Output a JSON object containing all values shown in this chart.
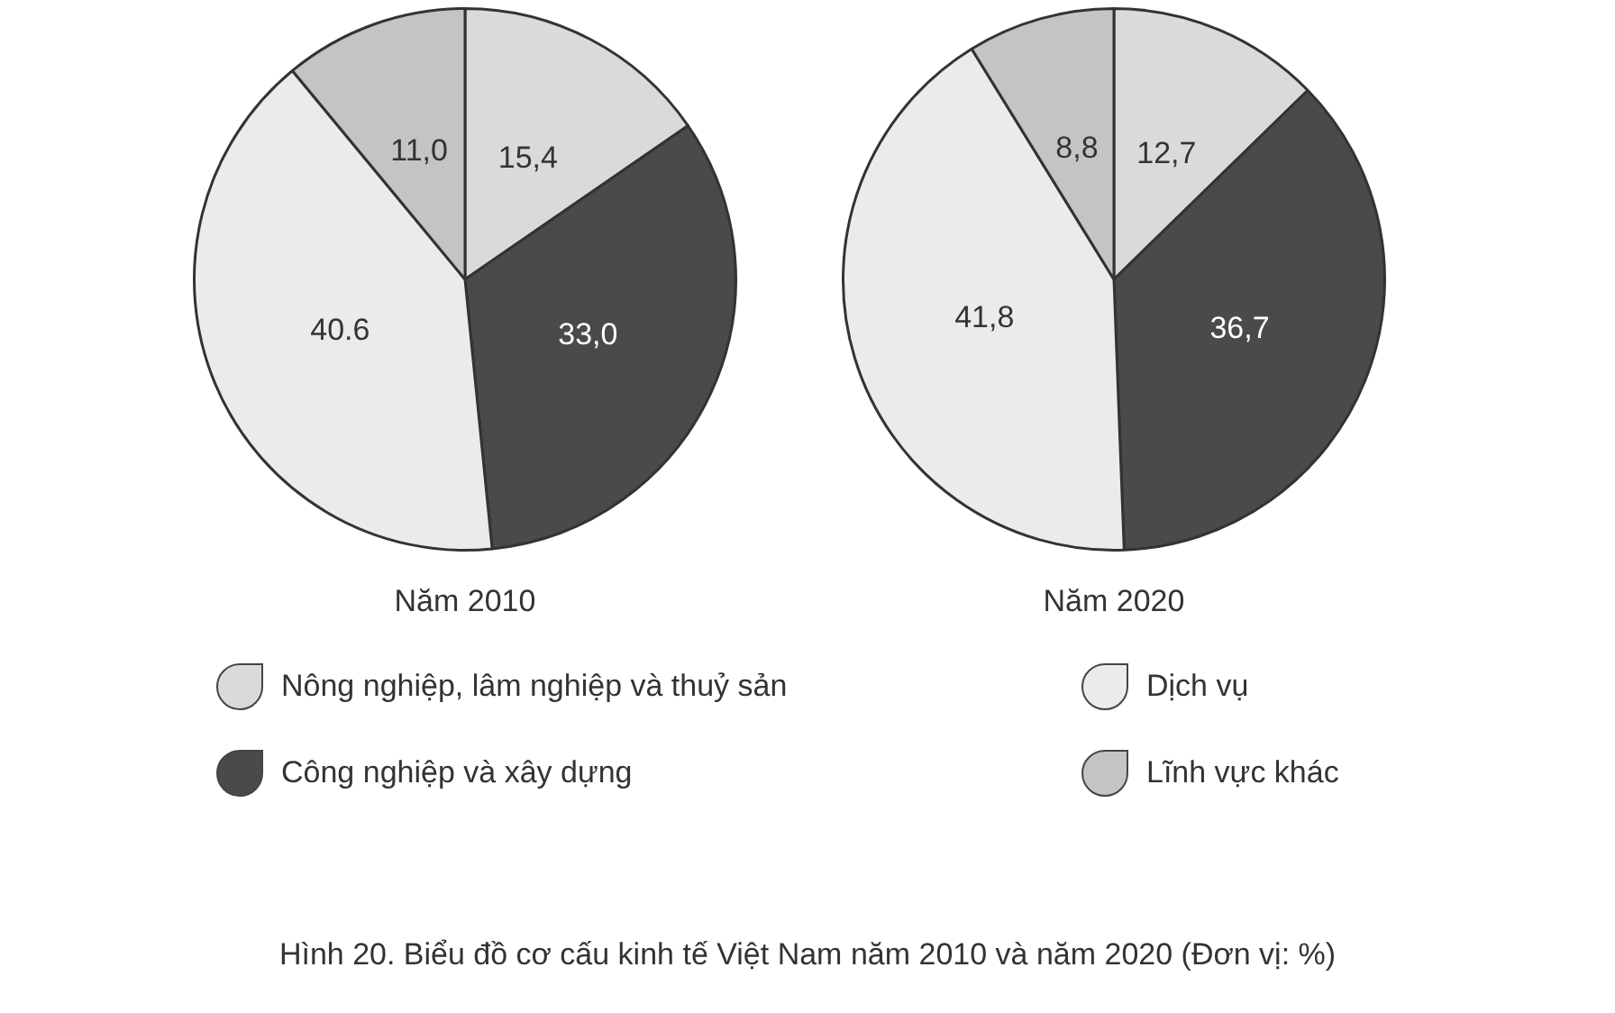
{
  "chart_data": [
    {
      "type": "pie",
      "title": "Năm 2010",
      "categories": [
        "Nông nghiệp, lâm nghiệp và thuỷ sản",
        "Công nghiệp và xây dựng",
        "Dịch vụ",
        "Lĩnh vực khác"
      ],
      "values": [
        15.4,
        33.0,
        40.6,
        11.0
      ],
      "value_labels": [
        "15,4",
        "33,0",
        "40.6",
        "11,0"
      ],
      "colors": [
        "#dadada",
        "#4a4a4a",
        "#ebebeb",
        "#c4c4c4"
      ],
      "legend": "bottom",
      "annotations": [
        "Hình 20. Biểu đồ cơ cấu kinh tế Việt Nam năm 2010 và năm 2020 (Đơn vị: %)"
      ]
    },
    {
      "type": "pie",
      "title": "Năm 2020",
      "categories": [
        null,
        null,
        null,
        null
      ],
      "values": [
        12.7,
        36.7,
        41.8,
        8.8
      ],
      "value_labels": [
        "12,7",
        "36,7",
        "41,8",
        "8,8"
      ],
      "colors": [
        "#dadada",
        "#4a4a4a",
        "#ebebeb",
        "#c4c4c4"
      ]
    }
  ]
}
